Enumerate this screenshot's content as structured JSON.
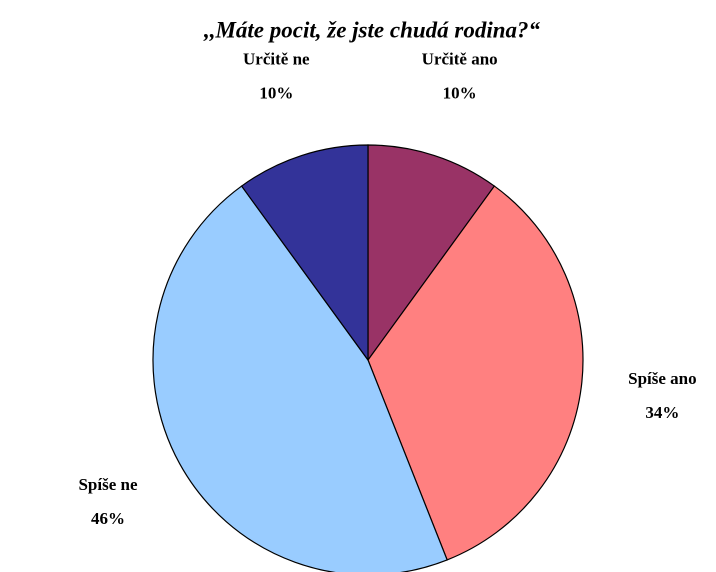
{
  "chart_data": {
    "type": "pie",
    "title": ",,Máte pocit, že jste chudá rodina?“",
    "categories": [
      "Určitě ano",
      "Spíše ano",
      "Spíše ne",
      "Určitě ne"
    ],
    "values": [
      10,
      34,
      46,
      10
    ],
    "value_labels": [
      "10%",
      "34%",
      "46%",
      "10%"
    ],
    "colors": [
      "#993366",
      "#FF8080",
      "#99CCFF",
      "#333399"
    ]
  }
}
